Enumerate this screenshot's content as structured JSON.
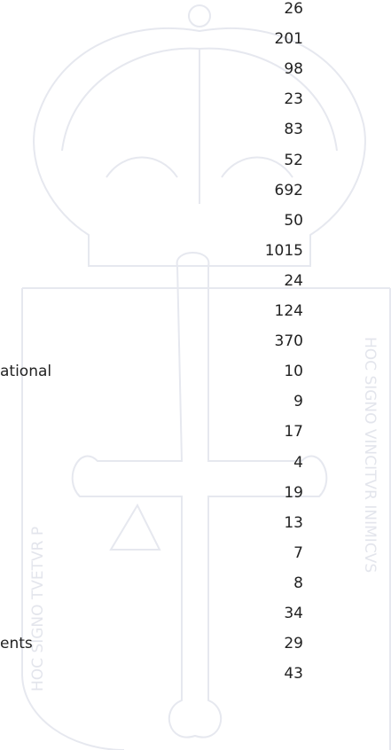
{
  "table": {
    "rows": [
      {
        "value": 26
      },
      {
        "value": 201
      },
      {
        "value": 98
      },
      {
        "value": 23
      },
      {
        "value": 83
      },
      {
        "value": 52
      },
      {
        "value": 692
      },
      {
        "value": 50
      },
      {
        "value": 1015
      },
      {
        "value": 24
      },
      {
        "value": 124
      },
      {
        "value": 370
      },
      {
        "label": "ational",
        "value": 10
      },
      {
        "value": 9
      },
      {
        "value": 17
      },
      {
        "value": 4
      },
      {
        "value": 19
      },
      {
        "value": 13
      },
      {
        "value": 7
      },
      {
        "value": 8
      },
      {
        "value": 34
      },
      {
        "label": "ents",
        "value": 29
      },
      {
        "value": 43
      }
    ]
  },
  "watermark": {
    "left_text": "HOC SIGNO TVETVR P",
    "right_text": "HOC SIGNO VINCITVR INIMICVS"
  }
}
